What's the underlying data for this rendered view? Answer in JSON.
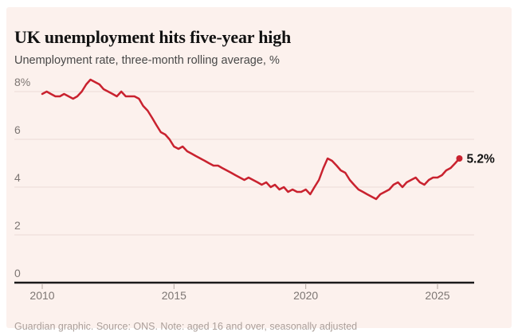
{
  "header": {
    "title": "UK unemployment hits five-year high",
    "subtitle": "Unemployment rate, three-month rolling average, %"
  },
  "footer": {
    "credit": "Guardian graphic. Source: ONS. Note: aged 16 and over, seasonally adjusted"
  },
  "colors": {
    "panel_background": "#fcf1ed",
    "line": "#c9222f",
    "axis": "#1a1a1a",
    "gridline": "#ebdcd7",
    "tick": "#b3a7a1",
    "tick_label": "#7d7673",
    "title": "#121212",
    "subtitle": "#484848",
    "credit": "#ab9f9a",
    "end_label": "#121212"
  },
  "chart_data": {
    "type": "line",
    "title": "UK unemployment hits five-year high",
    "subtitle": "Unemployment rate, three-month rolling average, %",
    "grid": true,
    "legend": false,
    "x_axis": {
      "tick_values": [
        2010,
        2015,
        2020,
        2025
      ],
      "tick_labels": [
        "2010",
        "2015",
        "2020",
        "2025"
      ],
      "range": [
        2010,
        2025.83
      ]
    },
    "y_axis": {
      "tick_values": [
        8,
        6,
        4,
        2,
        0
      ],
      "tick_labels": [
        "8%",
        "6",
        "4",
        "2",
        "0"
      ],
      "range": [
        0,
        8.7
      ],
      "unit": "%"
    },
    "end_label": "5.2%",
    "series": [
      {
        "name": "Unemployment rate",
        "color": "#c9222f",
        "points": [
          [
            2010.0,
            7.9
          ],
          [
            2010.17,
            8.0
          ],
          [
            2010.33,
            7.9
          ],
          [
            2010.5,
            7.8
          ],
          [
            2010.67,
            7.8
          ],
          [
            2010.83,
            7.9
          ],
          [
            2011.0,
            7.8
          ],
          [
            2011.17,
            7.7
          ],
          [
            2011.33,
            7.8
          ],
          [
            2011.5,
            8.0
          ],
          [
            2011.67,
            8.3
          ],
          [
            2011.83,
            8.5
          ],
          [
            2012.0,
            8.4
          ],
          [
            2012.17,
            8.3
          ],
          [
            2012.33,
            8.1
          ],
          [
            2012.5,
            8.0
          ],
          [
            2012.67,
            7.9
          ],
          [
            2012.83,
            7.8
          ],
          [
            2013.0,
            8.0
          ],
          [
            2013.17,
            7.8
          ],
          [
            2013.33,
            7.8
          ],
          [
            2013.5,
            7.8
          ],
          [
            2013.67,
            7.7
          ],
          [
            2013.83,
            7.4
          ],
          [
            2014.0,
            7.2
          ],
          [
            2014.17,
            6.9
          ],
          [
            2014.33,
            6.6
          ],
          [
            2014.5,
            6.3
          ],
          [
            2014.67,
            6.2
          ],
          [
            2014.83,
            6.0
          ],
          [
            2015.0,
            5.7
          ],
          [
            2015.17,
            5.6
          ],
          [
            2015.33,
            5.7
          ],
          [
            2015.5,
            5.5
          ],
          [
            2015.67,
            5.4
          ],
          [
            2015.83,
            5.3
          ],
          [
            2016.0,
            5.2
          ],
          [
            2016.17,
            5.1
          ],
          [
            2016.33,
            5.0
          ],
          [
            2016.5,
            4.9
          ],
          [
            2016.67,
            4.9
          ],
          [
            2016.83,
            4.8
          ],
          [
            2017.0,
            4.7
          ],
          [
            2017.17,
            4.6
          ],
          [
            2017.33,
            4.5
          ],
          [
            2017.5,
            4.4
          ],
          [
            2017.67,
            4.3
          ],
          [
            2017.83,
            4.4
          ],
          [
            2018.0,
            4.3
          ],
          [
            2018.17,
            4.2
          ],
          [
            2018.33,
            4.1
          ],
          [
            2018.5,
            4.2
          ],
          [
            2018.67,
            4.0
          ],
          [
            2018.83,
            4.1
          ],
          [
            2019.0,
            3.9
          ],
          [
            2019.17,
            4.0
          ],
          [
            2019.33,
            3.8
          ],
          [
            2019.5,
            3.9
          ],
          [
            2019.67,
            3.8
          ],
          [
            2019.83,
            3.8
          ],
          [
            2020.0,
            3.9
          ],
          [
            2020.17,
            3.7
          ],
          [
            2020.33,
            4.0
          ],
          [
            2020.5,
            4.3
          ],
          [
            2020.67,
            4.8
          ],
          [
            2020.83,
            5.2
          ],
          [
            2021.0,
            5.1
          ],
          [
            2021.17,
            4.9
          ],
          [
            2021.33,
            4.7
          ],
          [
            2021.5,
            4.6
          ],
          [
            2021.67,
            4.3
          ],
          [
            2021.83,
            4.1
          ],
          [
            2022.0,
            3.9
          ],
          [
            2022.17,
            3.8
          ],
          [
            2022.33,
            3.7
          ],
          [
            2022.5,
            3.6
          ],
          [
            2022.67,
            3.5
          ],
          [
            2022.83,
            3.7
          ],
          [
            2023.0,
            3.8
          ],
          [
            2023.17,
            3.9
          ],
          [
            2023.33,
            4.1
          ],
          [
            2023.5,
            4.2
          ],
          [
            2023.67,
            4.0
          ],
          [
            2023.83,
            4.2
          ],
          [
            2024.0,
            4.3
          ],
          [
            2024.17,
            4.4
          ],
          [
            2024.33,
            4.2
          ],
          [
            2024.5,
            4.1
          ],
          [
            2024.67,
            4.3
          ],
          [
            2024.83,
            4.4
          ],
          [
            2025.0,
            4.4
          ],
          [
            2025.17,
            4.5
          ],
          [
            2025.33,
            4.7
          ],
          [
            2025.5,
            4.8
          ],
          [
            2025.67,
            5.0
          ],
          [
            2025.83,
            5.2
          ]
        ]
      }
    ]
  }
}
